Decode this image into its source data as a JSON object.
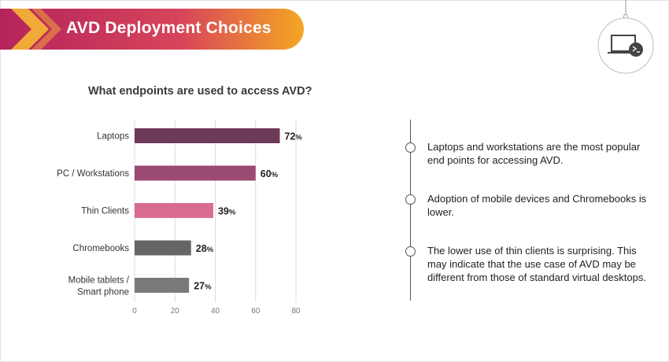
{
  "header": {
    "title": "AVD Deployment Choices",
    "icon": "laptop-terminal-icon"
  },
  "colors": {
    "banner_start": "#c0285e",
    "banner_end": "#f5a623",
    "accent_arrow": "#f7b733"
  },
  "question": "What endpoints are used to access AVD?",
  "chart_data": {
    "type": "bar",
    "orientation": "horizontal",
    "title": "",
    "categories": [
      "Laptops",
      "PC / Workstations",
      "Thin Clients",
      "Chromebooks",
      "Mobile tablets / Smart phone"
    ],
    "values": [
      72,
      60,
      39,
      28,
      27
    ],
    "value_suffix": "%",
    "colors": [
      "#6e3a5a",
      "#9b4a72",
      "#d96c8e",
      "#666666",
      "#7a7a7a"
    ],
    "xlim": [
      0,
      80
    ],
    "xticks": [
      0,
      20,
      40,
      60,
      80
    ],
    "grid": true
  },
  "insights": [
    "Laptops and workstations are the most popular end points for accessing AVD.",
    "Adoption of mobile devices and Chromebooks is lower.",
    "The lower use of thin clients is surprising. This may indicate that the use case of AVD may be different from those of standard virtual desktops."
  ]
}
